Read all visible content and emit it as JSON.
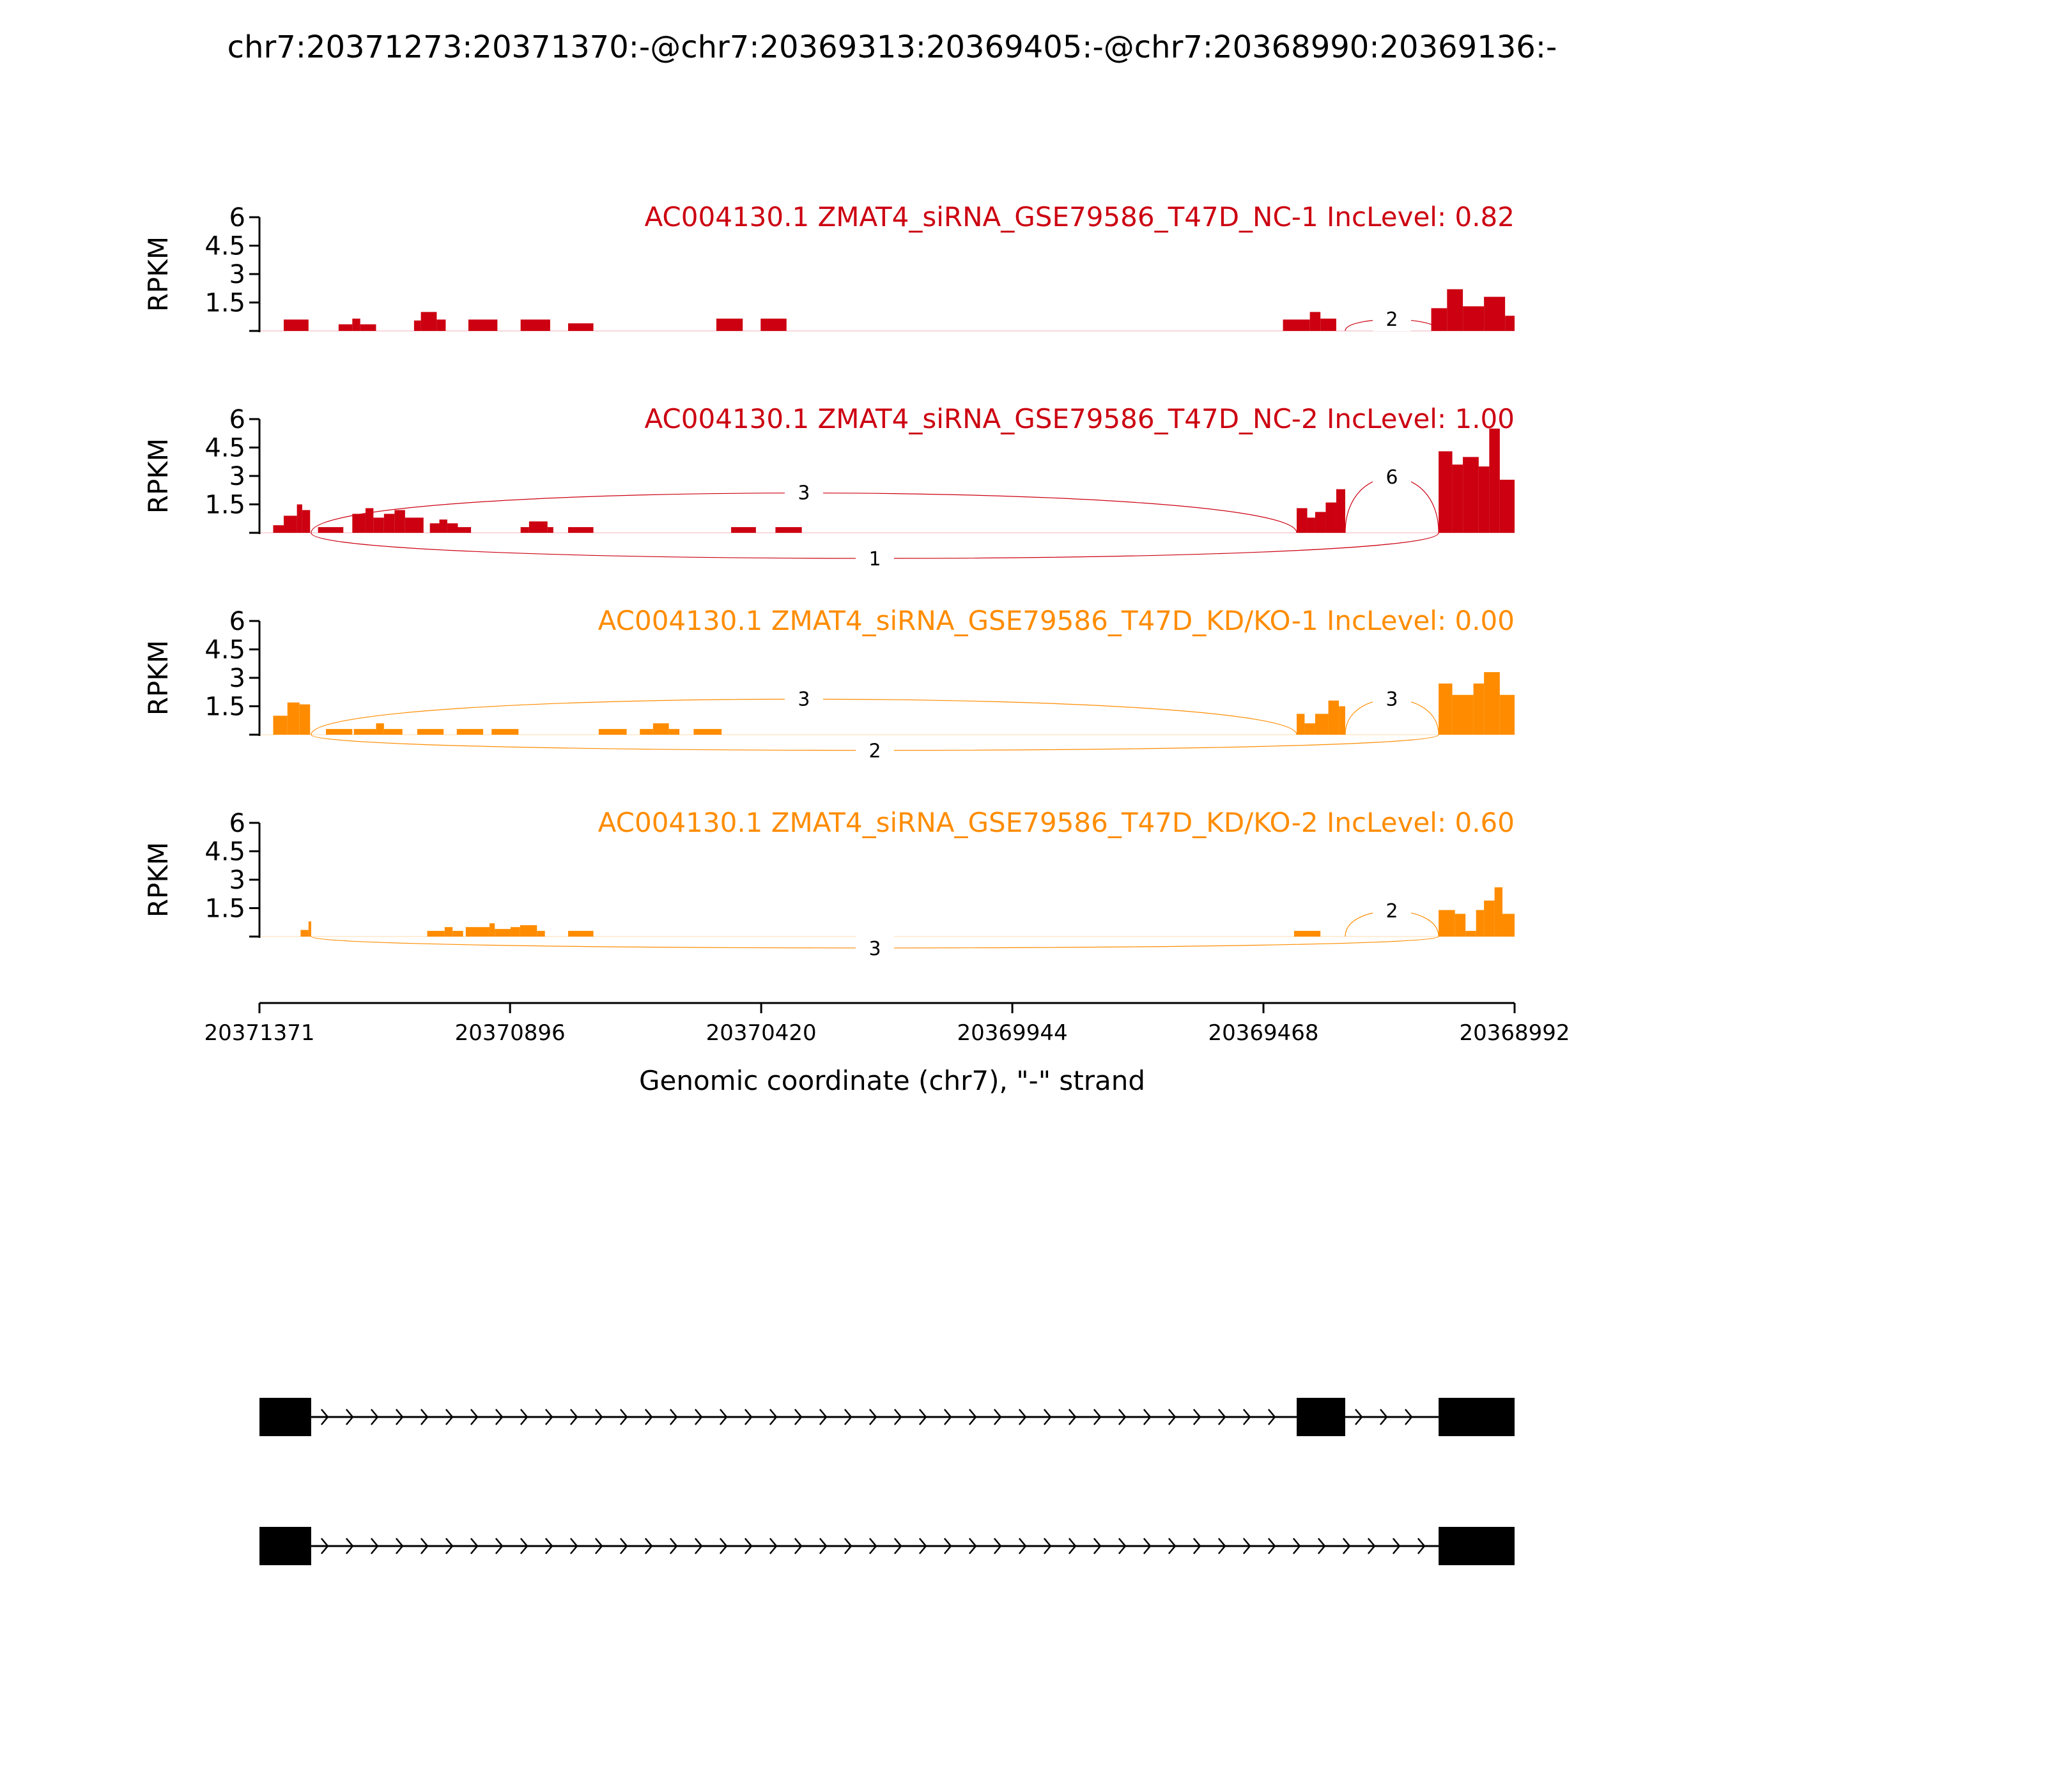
{
  "title": "chr7:20371273:20371370:-@chr7:20369313:20369405:-@chr7:20368990:20369136:-",
  "y_axis_label": "RPKM",
  "x_axis_label": "Genomic coordinate (chr7), \"-\" strand",
  "chart_data": {
    "type": "area",
    "x_ticks": [
      20371371,
      20370896,
      20370420,
      20369944,
      20369468,
      20368992
    ],
    "x_tick_labels": [
      "20371371",
      "20370896",
      "20370420",
      "20369944",
      "20369468",
      "20368992"
    ],
    "xlim": [
      20371371,
      20368992
    ],
    "y_ticks": [
      1.5,
      3,
      4.5,
      6
    ],
    "y_tick_labels": [
      "1.5",
      "3",
      "4.5",
      "6"
    ],
    "ylim": [
      0,
      6
    ],
    "panels": [
      {
        "name": "AC004130.1 ZMAT4_siRNA_GSE79586_T47D_NC-1 IncLevel: 0.82",
        "color": "#CC0011",
        "coverage": [
          [
            20371325,
            20371278,
            0.6
          ],
          [
            20371221,
            20371195,
            0.35
          ],
          [
            20371195,
            20371180,
            0.65
          ],
          [
            20371180,
            20371150,
            0.35
          ],
          [
            20371078,
            20371065,
            0.55
          ],
          [
            20371065,
            20371035,
            1.0
          ],
          [
            20371035,
            20371018,
            0.6
          ],
          [
            20370975,
            20370920,
            0.6
          ],
          [
            20370876,
            20370820,
            0.6
          ],
          [
            20370786,
            20370738,
            0.4
          ],
          [
            20370505,
            20370455,
            0.65
          ],
          [
            20370421,
            20370372,
            0.65
          ],
          [
            20369431,
            20369380,
            0.6
          ],
          [
            20369380,
            20369360,
            1.0
          ],
          [
            20369360,
            20369330,
            0.65
          ],
          [
            20369150,
            20369120,
            1.2
          ],
          [
            20369120,
            20369090,
            2.2
          ],
          [
            20369090,
            20369050,
            1.3
          ],
          [
            20369050,
            20369010,
            1.8
          ],
          [
            20369010,
            20368992,
            0.8
          ]
        ],
        "junctions_above": [
          {
            "from": 20369313,
            "to": 20369136,
            "count": "2",
            "height": 0.8
          }
        ],
        "junctions_below": []
      },
      {
        "name": "AC004130.1 ZMAT4_siRNA_GSE79586_T47D_NC-2 IncLevel: 1.00",
        "color": "#CC0011",
        "coverage": [
          [
            20371345,
            20371325,
            0.4
          ],
          [
            20371325,
            20371300,
            0.9
          ],
          [
            20371300,
            20371290,
            1.5
          ],
          [
            20371290,
            20371275,
            1.2
          ],
          [
            20371260,
            20371212,
            0.3
          ],
          [
            20371195,
            20371170,
            1.0
          ],
          [
            20371170,
            20371155,
            1.3
          ],
          [
            20371155,
            20371135,
            0.8
          ],
          [
            20371135,
            20371115,
            1.0
          ],
          [
            20371115,
            20371095,
            1.2
          ],
          [
            20371095,
            20371060,
            0.8
          ],
          [
            20371048,
            20371030,
            0.5
          ],
          [
            20371030,
            20371015,
            0.7
          ],
          [
            20371015,
            20370995,
            0.5
          ],
          [
            20371003,
            20370970,
            0.3
          ],
          [
            20370876,
            20370860,
            0.3
          ],
          [
            20370860,
            20370825,
            0.6
          ],
          [
            20370825,
            20370814,
            0.3
          ],
          [
            20370786,
            20370738,
            0.3
          ],
          [
            20370477,
            20370430,
            0.3
          ],
          [
            20370393,
            20370343,
            0.3
          ],
          [
            20369405,
            20369385,
            1.3
          ],
          [
            20369385,
            20369370,
            0.8
          ],
          [
            20369370,
            20369350,
            1.1
          ],
          [
            20369350,
            20369330,
            1.6
          ],
          [
            20369330,
            20369313,
            2.3
          ],
          [
            20369136,
            20369110,
            4.3
          ],
          [
            20369110,
            20369090,
            3.6
          ],
          [
            20369090,
            20369060,
            4.0
          ],
          [
            20369060,
            20369040,
            3.5
          ],
          [
            20369040,
            20369020,
            5.5
          ],
          [
            20369020,
            20368992,
            2.8
          ]
        ],
        "junctions_above": [
          {
            "from": 20371273,
            "to": 20369405,
            "count": "3",
            "height": 2.8
          },
          {
            "from": 20369313,
            "to": 20369136,
            "count": "6",
            "height": 3.9
          }
        ],
        "junctions_below": [
          {
            "from": 20371273,
            "to": 20369136,
            "count": "1",
            "depth": 1.8
          }
        ]
      },
      {
        "name": "AC004130.1 ZMAT4_siRNA_GSE79586_T47D_KD/KO-1 IncLevel: 0.00",
        "color": "#FF8C00",
        "coverage": [
          [
            20371345,
            20371318,
            1.0
          ],
          [
            20371318,
            20371295,
            1.7
          ],
          [
            20371295,
            20371275,
            1.6
          ],
          [
            20371245,
            20371195,
            0.3
          ],
          [
            20371192,
            20371150,
            0.3
          ],
          [
            20371150,
            20371135,
            0.6
          ],
          [
            20371135,
            20371100,
            0.3
          ],
          [
            20371072,
            20371022,
            0.3
          ],
          [
            20370997,
            20370947,
            0.3
          ],
          [
            20370931,
            20370880,
            0.3
          ],
          [
            20370728,
            20370675,
            0.3
          ],
          [
            20370650,
            20370625,
            0.3
          ],
          [
            20370625,
            20370595,
            0.6
          ],
          [
            20370595,
            20370575,
            0.3
          ],
          [
            20370548,
            20370495,
            0.3
          ],
          [
            20369405,
            20369390,
            1.1
          ],
          [
            20369390,
            20369370,
            0.6
          ],
          [
            20369370,
            20369345,
            1.1
          ],
          [
            20369345,
            20369325,
            1.8
          ],
          [
            20369325,
            20369313,
            1.5
          ],
          [
            20369136,
            20369110,
            2.7
          ],
          [
            20369110,
            20369070,
            2.1
          ],
          [
            20369070,
            20369050,
            2.7
          ],
          [
            20369050,
            20369020,
            3.3
          ],
          [
            20369020,
            20368992,
            2.1
          ]
        ],
        "junctions_above": [
          {
            "from": 20371273,
            "to": 20369405,
            "count": "3",
            "height": 2.5
          },
          {
            "from": 20369313,
            "to": 20369136,
            "count": "3",
            "height": 2.5
          }
        ],
        "junctions_below": [
          {
            "from": 20371273,
            "to": 20369136,
            "count": "2",
            "depth": 1.1
          }
        ]
      },
      {
        "name": "AC004130.1 ZMAT4_siRNA_GSE79586_T47D_KD/KO-2 IncLevel: 0.60",
        "color": "#FF8C00",
        "coverage": [
          [
            20371293,
            20371278,
            0.35
          ],
          [
            20371278,
            20371273,
            0.8
          ],
          [
            20371053,
            20371020,
            0.3
          ],
          [
            20371020,
            20371005,
            0.5
          ],
          [
            20371005,
            20370985,
            0.3
          ],
          [
            20370980,
            20370935,
            0.5
          ],
          [
            20370935,
            20370925,
            0.7
          ],
          [
            20370925,
            20370895,
            0.4
          ],
          [
            20370895,
            20370877,
            0.5
          ],
          [
            20370877,
            20370845,
            0.6
          ],
          [
            20370845,
            20370830,
            0.3
          ],
          [
            20370786,
            20370738,
            0.3
          ],
          [
            20369410,
            20369360,
            0.3
          ],
          [
            20369136,
            20369105,
            1.4
          ],
          [
            20369105,
            20369085,
            1.2
          ],
          [
            20369085,
            20369065,
            0.3
          ],
          [
            20369065,
            20369050,
            1.4
          ],
          [
            20369050,
            20369030,
            1.9
          ],
          [
            20369030,
            20369015,
            2.6
          ],
          [
            20369015,
            20368992,
            1.2
          ]
        ],
        "junctions_above": [
          {
            "from": 20369313,
            "to": 20369136,
            "count": "2",
            "height": 1.8
          }
        ],
        "junctions_below": [
          {
            "from": 20371273,
            "to": 20369136,
            "count": "3",
            "depth": 0.8
          }
        ]
      }
    ],
    "gene_models": [
      {
        "exons": [
          [
            20371371,
            20371273
          ],
          [
            20369405,
            20369313
          ],
          [
            20369136,
            20368992
          ]
        ]
      },
      {
        "exons": [
          [
            20371371,
            20371273
          ],
          [
            20369136,
            20368992
          ]
        ]
      }
    ]
  }
}
